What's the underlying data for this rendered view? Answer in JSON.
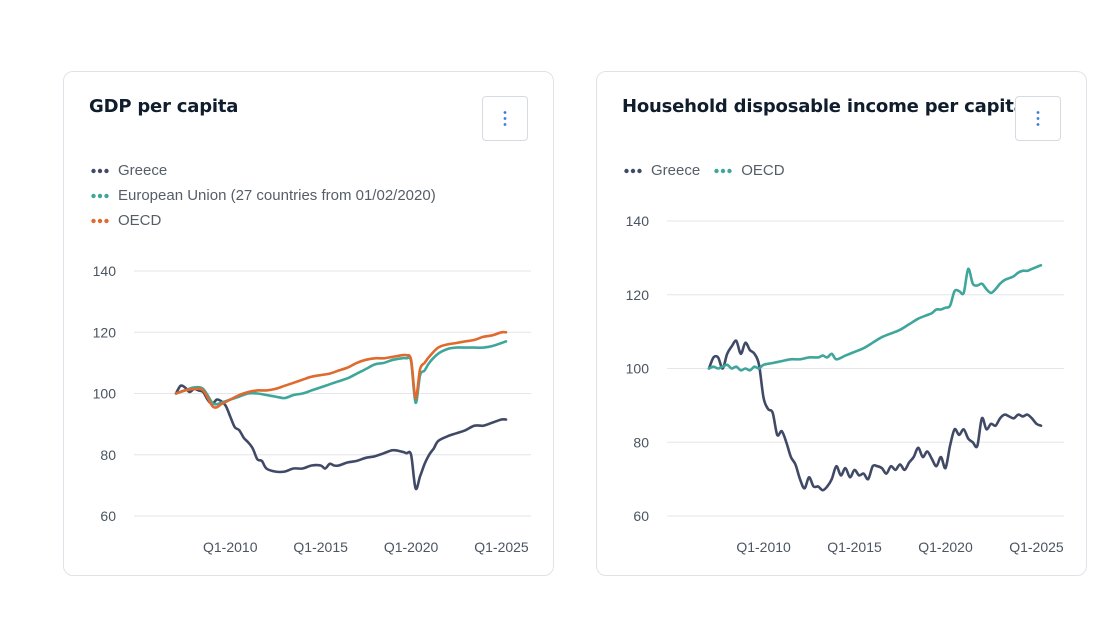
{
  "colors": {
    "greece": "#404a66",
    "eu": "#3fa69b",
    "oecd": "#e06a2d",
    "grid": "#e3e6ea"
  },
  "menu_icon": "vertical-ellipsis-icon",
  "cards": [
    {
      "title": "GDP per capita",
      "menu_glyph": "⋮",
      "legend": [
        "Greece",
        "European Union (27 countries from 01/02/2020)",
        "OECD"
      ]
    },
    {
      "title": "Household disposable income per capita",
      "menu_glyph": "⋮",
      "legend": [
        "Greece",
        "OECD"
      ]
    }
  ],
  "chart_data": [
    {
      "type": "line",
      "title": "GDP per capita",
      "xlabel": "",
      "ylabel": "",
      "xlim": [
        2007,
        2025.5
      ],
      "ylim": [
        60,
        140
      ],
      "yticks": [
        60,
        80,
        100,
        120,
        140
      ],
      "xticks": [
        2010,
        2015,
        2020,
        2025
      ],
      "xtick_labels": [
        "Q1-2010",
        "Q1-2015",
        "Q1-2020",
        "Q1-2025"
      ],
      "grid": true,
      "legend_position": "top-left",
      "series": [
        {
          "name": "Greece",
          "x": [
            2007,
            2007.25,
            2007.5,
            2007.75,
            2008,
            2008.25,
            2008.5,
            2008.75,
            2009,
            2009.25,
            2009.5,
            2009.75,
            2010,
            2010.25,
            2010.5,
            2010.75,
            2011,
            2011.25,
            2011.5,
            2011.75,
            2012,
            2012.5,
            2013,
            2013.5,
            2014,
            2014.5,
            2015,
            2015.25,
            2015.5,
            2015.75,
            2016,
            2016.5,
            2017,
            2017.5,
            2018,
            2018.5,
            2019,
            2019.5,
            2019.75,
            2020,
            2020.25,
            2020.5,
            2020.75,
            2021,
            2021.25,
            2021.5,
            2022,
            2022.5,
            2023,
            2023.5,
            2024,
            2024.5,
            2025,
            2025.25
          ],
          "values": [
            100,
            102.5,
            102,
            100.5,
            101.5,
            101,
            100.5,
            98,
            96.5,
            98,
            97.5,
            96,
            92.5,
            89,
            88,
            85.5,
            84,
            82,
            78.5,
            78,
            75.5,
            74.5,
            74.5,
            75.5,
            75.5,
            76.5,
            76.5,
            75.5,
            77,
            76.5,
            76.5,
            77.5,
            78,
            79,
            79.5,
            80.5,
            81.5,
            81,
            80.5,
            80,
            69,
            73,
            77,
            80,
            82,
            84.5,
            86,
            87,
            88,
            89.5,
            89.5,
            90.5,
            91.5,
            91.5
          ]
        },
        {
          "name": "European Union (27 countries from 01/02/2020)",
          "x": [
            2007,
            2007.5,
            2008,
            2008.5,
            2009,
            2009.25,
            2009.5,
            2010,
            2010.5,
            2011,
            2011.5,
            2012,
            2012.5,
            2013,
            2013.5,
            2014,
            2014.5,
            2015,
            2015.5,
            2016,
            2016.5,
            2017,
            2017.5,
            2018,
            2018.5,
            2019,
            2019.5,
            2019.75,
            2020,
            2020.25,
            2020.5,
            2020.75,
            2021,
            2021.5,
            2022,
            2022.5,
            2023,
            2023.5,
            2024,
            2024.5,
            2025,
            2025.25
          ],
          "values": [
            100,
            101,
            102,
            101.5,
            97,
            96.5,
            97,
            98,
            99,
            100,
            100,
            99.5,
            99,
            98.5,
            99.5,
            100,
            101,
            102,
            103,
            104,
            105,
            106.5,
            108,
            109.5,
            110,
            111,
            111.5,
            111.5,
            110.5,
            97,
            106,
            107.5,
            110,
            113,
            114.5,
            115,
            115,
            115,
            115,
            115.5,
            116.5,
            117
          ]
        },
        {
          "name": "OECD",
          "x": [
            2007,
            2007.5,
            2008,
            2008.5,
            2009,
            2009.25,
            2009.5,
            2010,
            2010.5,
            2011,
            2011.5,
            2012,
            2012.5,
            2013,
            2013.5,
            2014,
            2014.5,
            2015,
            2015.5,
            2016,
            2016.5,
            2017,
            2017.5,
            2018,
            2018.5,
            2019,
            2019.5,
            2019.75,
            2020,
            2020.25,
            2020.5,
            2020.75,
            2021,
            2021.5,
            2022,
            2022.5,
            2023,
            2023.5,
            2024,
            2024.5,
            2025,
            2025.25
          ],
          "values": [
            100,
            101,
            101.5,
            101,
            96,
            95.5,
            96.5,
            98,
            99.5,
            100.5,
            101,
            101,
            101.5,
            102.5,
            103.5,
            104.5,
            105.5,
            106,
            106.5,
            107.5,
            108.5,
            110,
            111,
            111.5,
            111.5,
            112,
            112.5,
            112.5,
            111,
            98.5,
            108,
            110,
            112,
            115,
            116,
            116.5,
            117,
            117.5,
            118.5,
            119,
            120,
            120
          ]
        }
      ]
    },
    {
      "type": "line",
      "title": "Household disposable income per capita",
      "xlabel": "",
      "ylabel": "",
      "xlim": [
        2007,
        2025.5
      ],
      "ylim": [
        60,
        140
      ],
      "yticks": [
        60,
        80,
        100,
        120,
        140
      ],
      "xticks": [
        2010,
        2015,
        2020,
        2025
      ],
      "xtick_labels": [
        "Q1-2010",
        "Q1-2015",
        "Q1-2020",
        "Q1-2025"
      ],
      "grid": true,
      "legend_position": "top-left",
      "series": [
        {
          "name": "Greece",
          "x": [
            2007,
            2007.25,
            2007.5,
            2007.75,
            2008,
            2008.25,
            2008.5,
            2008.75,
            2009,
            2009.25,
            2009.5,
            2009.75,
            2010,
            2010.25,
            2010.5,
            2010.75,
            2011,
            2011.25,
            2011.5,
            2011.75,
            2012,
            2012.25,
            2012.5,
            2012.75,
            2013,
            2013.25,
            2013.5,
            2013.75,
            2014,
            2014.25,
            2014.5,
            2014.75,
            2015,
            2015.25,
            2015.5,
            2015.75,
            2016,
            2016.25,
            2016.5,
            2016.75,
            2017,
            2017.25,
            2017.5,
            2017.75,
            2018,
            2018.25,
            2018.5,
            2018.75,
            2019,
            2019.25,
            2019.5,
            2019.75,
            2020,
            2020.25,
            2020.5,
            2020.75,
            2021,
            2021.25,
            2021.5,
            2021.75,
            2022,
            2022.25,
            2022.5,
            2022.75,
            2023,
            2023.25,
            2023.5,
            2023.75,
            2024,
            2024.25,
            2024.5,
            2024.75,
            2025,
            2025.25
          ],
          "values": [
            100,
            103,
            103,
            100,
            104,
            106,
            107.5,
            104,
            107,
            105,
            104,
            101,
            92,
            89,
            88,
            82,
            83,
            80,
            76,
            74,
            70,
            67.5,
            70.5,
            68,
            68,
            67,
            68,
            70,
            73.5,
            71,
            73,
            70.5,
            72.5,
            71,
            71.5,
            70,
            73.5,
            73.5,
            73,
            71.5,
            73.5,
            72.5,
            74,
            72.5,
            74.5,
            76,
            78.5,
            76,
            77.5,
            75.5,
            73.5,
            76,
            73,
            79,
            83.5,
            82,
            83.5,
            81,
            80,
            79,
            86.5,
            83.5,
            85,
            84.5,
            86.5,
            87.5,
            87,
            86.5,
            87.5,
            87,
            87.5,
            86.5,
            85,
            84.5
          ]
        },
        {
          "name": "OECD",
          "x": [
            2007,
            2007.25,
            2007.5,
            2007.75,
            2008,
            2008.25,
            2008.5,
            2008.75,
            2009,
            2009.25,
            2009.5,
            2009.75,
            2010,
            2010.5,
            2011,
            2011.5,
            2012,
            2012.5,
            2013,
            2013.25,
            2013.5,
            2013.75,
            2014,
            2014.5,
            2015,
            2015.5,
            2016,
            2016.5,
            2017,
            2017.5,
            2018,
            2018.5,
            2019,
            2019.25,
            2019.5,
            2019.75,
            2020,
            2020.25,
            2020.5,
            2020.75,
            2021,
            2021.25,
            2021.5,
            2021.75,
            2022,
            2022.25,
            2022.5,
            2022.75,
            2023,
            2023.25,
            2023.5,
            2023.75,
            2024,
            2024.25,
            2024.5,
            2024.75,
            2025,
            2025.25
          ],
          "values": [
            100,
            100.5,
            100,
            100.5,
            101,
            100,
            100.5,
            99.5,
            100,
            99.5,
            100.5,
            100,
            101,
            101.5,
            102,
            102.5,
            102.5,
            103,
            103,
            103.5,
            103,
            104,
            102.5,
            103.5,
            104.5,
            105.5,
            107,
            108.5,
            109.5,
            110.5,
            112,
            113.5,
            114.5,
            115,
            116,
            116,
            116.5,
            117,
            121,
            121,
            120.5,
            127,
            123,
            122.5,
            123,
            121.5,
            120.5,
            121.5,
            123,
            124,
            124.5,
            125,
            126,
            126.5,
            126.5,
            127,
            127.5,
            128
          ]
        }
      ]
    }
  ]
}
